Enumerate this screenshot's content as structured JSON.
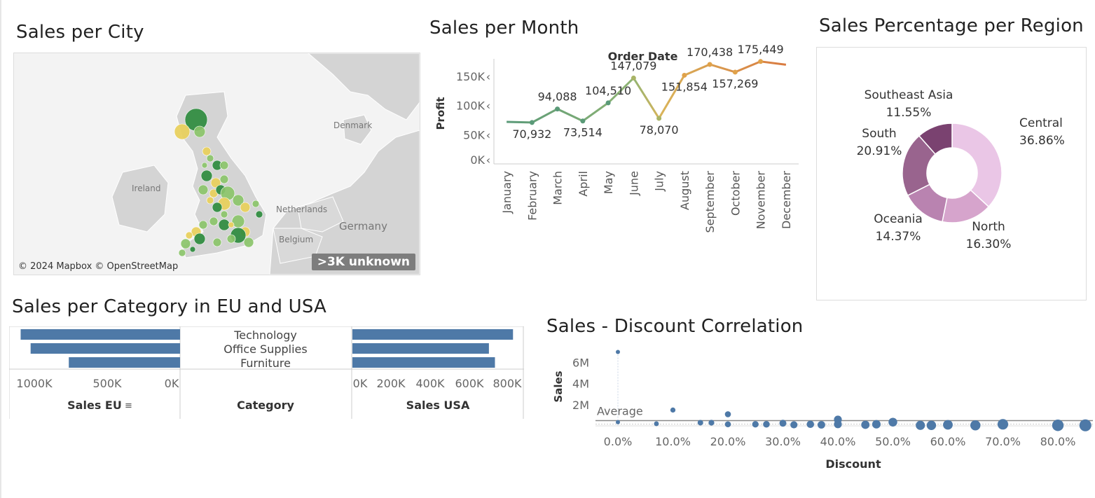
{
  "titles": {
    "city": "Sales per City",
    "month": "Sales per Month",
    "region": "Sales Percentage per Region",
    "category": "Sales per Category in EU and USA",
    "discount": "Sales - Discount Correlation"
  },
  "map": {
    "credit": "© 2024 Mapbox © OpenStreetMap",
    "unknown_badge": ">3K unknown",
    "labels": [
      "Denmark",
      "Ireland",
      "Netherlands",
      "Belgium",
      "Germany"
    ]
  },
  "colors": {
    "bar": "#4e79a7",
    "dot": "#4e79a7",
    "green_dark": "#2e8b3e",
    "green_light": "#8bc46a",
    "yellow": "#e8cf5a"
  },
  "chart_data": [
    {
      "id": "sales_per_month",
      "type": "line",
      "title": "Sales per Month",
      "xlabel": "Order Date",
      "ylabel": "Profit",
      "categories": [
        "January",
        "February",
        "March",
        "April",
        "May",
        "June",
        "July",
        "August",
        "September",
        "October",
        "November",
        "December"
      ],
      "values": [
        72000,
        70932,
        94088,
        73514,
        104510,
        147079,
        78070,
        151854,
        170438,
        157269,
        175449,
        170000
      ],
      "data_labels": [
        "",
        "70,932",
        "94,088",
        "73,514",
        "104,510",
        "147,079",
        "78,070",
        "151,854",
        "170,438",
        "157,269",
        "175,449",
        ""
      ],
      "yticks": [
        "150K",
        "100K",
        "50K",
        "0K"
      ],
      "ylim": [
        0,
        180000
      ]
    },
    {
      "id": "sales_pct_region",
      "type": "pie",
      "title": "Sales Percentage per Region",
      "slices": [
        {
          "name": "Central",
          "value": 36.86,
          "label": "36.86%",
          "color": "#eac6e6"
        },
        {
          "name": "North",
          "value": 16.3,
          "label": "16.30%",
          "color": "#d6a4cc"
        },
        {
          "name": "Oceania",
          "value": 14.37,
          "label": "14.37%",
          "color": "#b983b0"
        },
        {
          "name": "South",
          "value": 20.91,
          "label": "20.91%",
          "color": "#99648e"
        },
        {
          "name": "Southeast Asia",
          "value": 11.55,
          "label": "11.55%",
          "color": "#7a4270"
        }
      ]
    },
    {
      "id": "sales_per_category",
      "type": "bar",
      "title": "Sales per Category in EU and USA",
      "categories": [
        "Technology",
        "Office Supplies",
        "Furniture"
      ],
      "category_header": "Category",
      "series": [
        {
          "name": "Sales EU",
          "values": [
            960000,
            900000,
            670000
          ]
        },
        {
          "name": "Sales USA",
          "values": [
            800000,
            680000,
            710000
          ]
        }
      ],
      "eu_ticks": [
        "1000K",
        "500K",
        "0K"
      ],
      "usa_ticks": [
        "0K",
        "200K",
        "400K",
        "600K",
        "800K"
      ],
      "eu_xlim": [
        0,
        1000000
      ],
      "usa_xlim": [
        0,
        820000
      ]
    },
    {
      "id": "sales_discount",
      "type": "scatter",
      "title": "Sales - Discount Correlation",
      "xlabel": "Discount",
      "ylabel": "Sales",
      "average_label": "Average",
      "average_value": 500000,
      "xticks": [
        "0.0%",
        "10.0%",
        "20.0%",
        "30.0%",
        "40.0%",
        "50.0%",
        "60.0%",
        "70.0%",
        "80.0%"
      ],
      "yticks": [
        "6M",
        "4M",
        "2M"
      ],
      "xlim": [
        0,
        0.86
      ],
      "ylim": [
        0,
        7500000
      ],
      "points": [
        {
          "x": 0.0,
          "y": 7000000
        },
        {
          "x": 0.0,
          "y": 350000
        },
        {
          "x": 0.07,
          "y": 200000
        },
        {
          "x": 0.1,
          "y": 1500000
        },
        {
          "x": 0.15,
          "y": 300000
        },
        {
          "x": 0.17,
          "y": 300000
        },
        {
          "x": 0.2,
          "y": 1100000
        },
        {
          "x": 0.2,
          "y": 150000
        },
        {
          "x": 0.25,
          "y": 150000
        },
        {
          "x": 0.27,
          "y": 150000
        },
        {
          "x": 0.3,
          "y": 250000
        },
        {
          "x": 0.32,
          "y": 100000
        },
        {
          "x": 0.35,
          "y": 150000
        },
        {
          "x": 0.37,
          "y": 100000
        },
        {
          "x": 0.4,
          "y": 600000
        },
        {
          "x": 0.4,
          "y": 150000
        },
        {
          "x": 0.45,
          "y": 100000
        },
        {
          "x": 0.47,
          "y": 150000
        },
        {
          "x": 0.5,
          "y": 350000
        },
        {
          "x": 0.55,
          "y": 50000
        },
        {
          "x": 0.57,
          "y": 50000
        },
        {
          "x": 0.6,
          "y": 100000
        },
        {
          "x": 0.65,
          "y": 50000
        },
        {
          "x": 0.7,
          "y": 150000
        },
        {
          "x": 0.8,
          "y": 50000
        },
        {
          "x": 0.85,
          "y": 50000
        }
      ]
    }
  ]
}
